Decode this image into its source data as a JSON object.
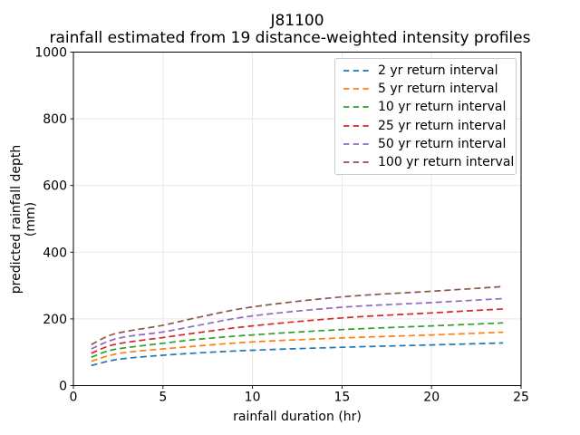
{
  "chart_data": {
    "type": "line",
    "title": "J81100",
    "subtitle": "rainfall estimated from 19 distance-weighted intensity profiles",
    "xlabel": "rainfall duration (hr)",
    "ylabel": "predicted rainfall depth (mm)",
    "xlim": [
      0,
      25
    ],
    "ylim": [
      0,
      1000
    ],
    "xticks": [
      0,
      5,
      10,
      15,
      20,
      25
    ],
    "yticks": [
      0,
      200,
      400,
      600,
      800,
      1000
    ],
    "grid": true,
    "grid_color": "#e8e8e8",
    "line_style": "dashed",
    "legend_position": "upper right",
    "x": [
      1,
      2,
      3,
      5,
      7,
      10,
      15,
      20,
      24
    ],
    "series": [
      {
        "name": "2 yr return interval",
        "color": "#1f77b4",
        "values": [
          60,
          74,
          82,
          91,
          98,
          106,
          115,
          122,
          128
        ]
      },
      {
        "name": "5 yr return interval",
        "color": "#ff7f0e",
        "values": [
          73,
          90,
          100,
          110,
          119,
          131,
          143,
          152,
          160
        ]
      },
      {
        "name": "10 yr return interval",
        "color": "#2ca02c",
        "values": [
          85,
          105,
          114,
          127,
          139,
          152,
          168,
          179,
          188
        ]
      },
      {
        "name": "25 yr return interval",
        "color": "#d62728",
        "values": [
          97,
          119,
          130,
          144,
          159,
          179,
          203,
          218,
          230
        ]
      },
      {
        "name": "50 yr return interval",
        "color": "#9467bd",
        "values": [
          110,
          134,
          147,
          161,
          181,
          209,
          235,
          249,
          261
        ]
      },
      {
        "name": "100 yr return interval",
        "color": "#8c564b",
        "values": [
          123,
          150,
          163,
          181,
          205,
          236,
          266,
          283,
          297
        ]
      }
    ]
  }
}
